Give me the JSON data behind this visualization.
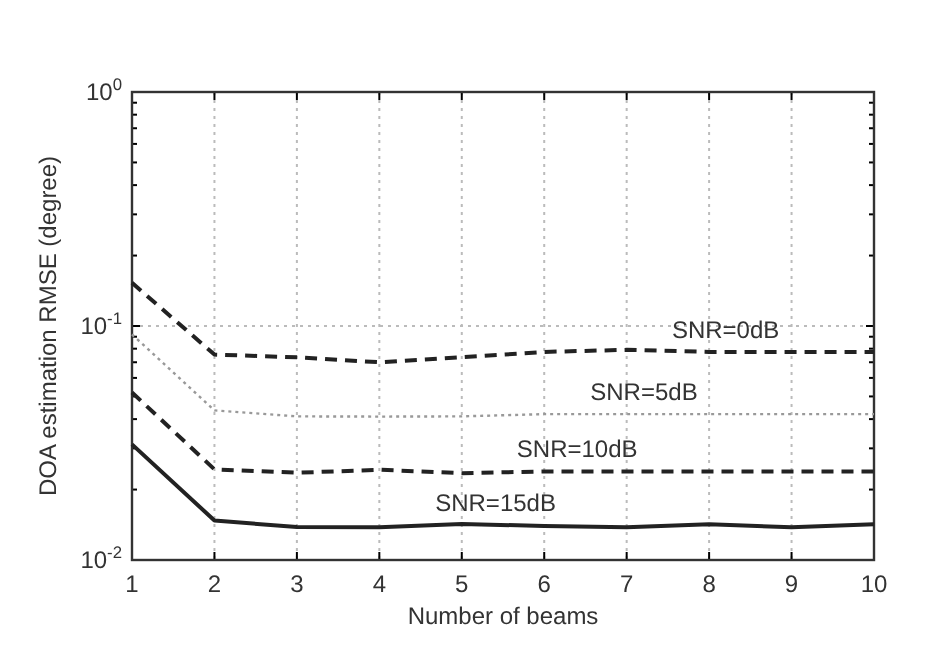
{
  "chart_data": {
    "type": "line",
    "xlabel": "Number of beams",
    "ylabel": "DOA estimation RMSE (degree)",
    "x": [
      1,
      2,
      3,
      4,
      5,
      6,
      7,
      8,
      9,
      10
    ],
    "series": [
      {
        "name": "SNR=0dB",
        "color": "#222222",
        "line_style": "dashed",
        "values": [
          0.153,
          0.0755,
          0.0735,
          0.07,
          0.0735,
          0.0775,
          0.0791,
          0.0775,
          0.0775,
          0.0775
        ]
      },
      {
        "name": "SNR=5dB",
        "color": "#999999",
        "line_style": "dotted",
        "values": [
          0.092,
          0.0436,
          0.0411,
          0.041,
          0.0411,
          0.042,
          0.042,
          0.042,
          0.042,
          0.042
        ]
      },
      {
        "name": "SNR=10dB",
        "color": "#222222",
        "line_style": "dashed",
        "values": [
          0.052,
          0.0244,
          0.0236,
          0.0243,
          0.0235,
          0.0239,
          0.0239,
          0.0239,
          0.0239,
          0.0239
        ]
      },
      {
        "name": "SNR=15dB",
        "color": "#222222",
        "line_style": "solid",
        "values": [
          0.0312,
          0.01475,
          0.01383,
          0.0138,
          0.01426,
          0.01397,
          0.0138,
          0.0142,
          0.0138,
          0.0142
        ]
      }
    ],
    "log": "y",
    "xlim": [
      1,
      10
    ],
    "xticks": [
      1,
      2,
      3,
      4,
      5,
      6,
      7,
      8,
      9,
      10
    ],
    "ylim": [
      0.01,
      1
    ],
    "yticks": [
      {
        "value": 0.01,
        "label": "10$^{-2}$"
      },
      {
        "value": 0.02,
        "label": null
      },
      {
        "value": 0.03,
        "label": null
      },
      {
        "value": 0.04,
        "label": null
      },
      {
        "value": 0.05,
        "label": null
      },
      {
        "value": 0.06,
        "label": null
      },
      {
        "value": 0.07,
        "label": null
      },
      {
        "value": 0.08,
        "label": null
      },
      {
        "value": 0.09,
        "label": null
      },
      {
        "value": 0.1,
        "label": "10$^{-1}$"
      },
      {
        "value": 0.2,
        "label": null
      },
      {
        "value": 0.3,
        "label": null
      },
      {
        "value": 0.4,
        "label": null
      },
      {
        "value": 0.5,
        "label": null
      },
      {
        "value": 0.6,
        "label": null
      },
      {
        "value": 0.7,
        "label": null
      },
      {
        "value": 0.8,
        "label": null
      },
      {
        "value": 0.9,
        "label": null
      },
      {
        "value": 1,
        "label": "10$^{0}$"
      }
    ],
    "grid": true,
    "marker": "none"
  }
}
